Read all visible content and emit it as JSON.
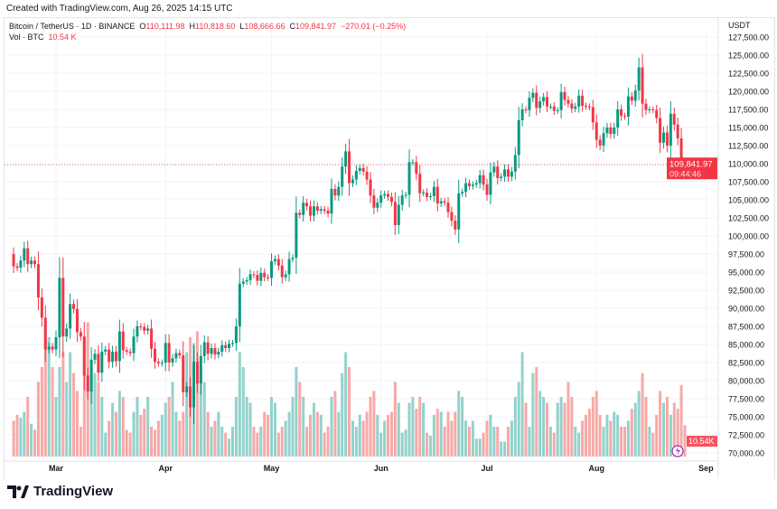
{
  "header": {
    "created": "Created with TradingView.com, Aug 26, 2025 14:15 UTC"
  },
  "legend": {
    "symbol": "Bitcoin / TetherUS · 1D · BINANCE",
    "o_label": "O",
    "o": "110,111.98",
    "h_label": "H",
    "h": "110,818.60",
    "l_label": "L",
    "l": "108,666.66",
    "c_label": "C",
    "c": "109,841.97",
    "change": "−270.01 (−0.25%)",
    "vol_label": "Vol · BTC",
    "vol": "10.54 K"
  },
  "logo": {
    "text": "TradingView"
  },
  "chart_data": {
    "type": "candlestick",
    "currency": "USDT",
    "x_tick_labels": [
      "Mar",
      "Apr",
      "May",
      "Jun",
      "Jul",
      "Aug",
      "Sep"
    ],
    "y_tick_labels": [
      "70,000.00",
      "72,500.00",
      "75,000.00",
      "77,500.00",
      "80,000.00",
      "82,500.00",
      "85,000.00",
      "87,500.00",
      "90,000.00",
      "92,500.00",
      "95,000.00",
      "97,500.00",
      "100,000.00",
      "102,500.00",
      "105,000.00",
      "107,500.00",
      "110,000.00",
      "112,500.00",
      "115,000.00",
      "117,500.00",
      "120,000.00",
      "122,500.00",
      "125,000.00",
      "127,500.00"
    ],
    "ylim": [
      70000,
      127500
    ],
    "start_date": "2025-02-17",
    "end_date": "2025-08-26",
    "close_k": [
      95.8,
      95.6,
      96.6,
      98.3,
      96.1,
      96.6,
      96.1,
      91.5,
      88.7,
      84.3,
      84.7,
      84.3,
      86.0,
      94.2,
      86.1,
      87.2,
      90.6,
      89.9,
      86.7,
      86.1,
      80.7,
      78.5,
      82.9,
      83.7,
      81.1,
      84.0,
      84.3,
      82.6,
      84.0,
      82.7,
      86.8,
      84.2,
      84.0,
      83.8,
      86.1,
      87.5,
      87.4,
      86.9,
      87.2,
      84.4,
      82.6,
      82.4,
      82.5,
      85.2,
      82.5,
      83.1,
      83.8,
      83.5,
      78.4,
      79.2,
      76.3,
      82.6,
      79.6,
      83.4,
      85.3,
      83.7,
      84.5,
      83.6,
      84.0,
      84.9,
      84.5,
      85.1,
      85.2,
      87.5,
      93.4,
      93.7,
      93.9,
      94.7,
      94.6,
      93.8,
      94.9,
      94.3,
      94.2,
      96.5,
      96.8,
      95.9,
      94.3,
      94.7,
      96.8,
      97.0,
      103.2,
      102.9,
      104.6,
      104.1,
      102.8,
      104.1,
      103.5,
      103.7,
      103.5,
      103.1,
      106.5,
      105.6,
      106.8,
      109.6,
      111.7,
      107.3,
      107.8,
      109.0,
      109.4,
      108.9,
      107.8,
      105.6,
      103.9,
      104.6,
      105.6,
      105.8,
      105.4,
      104.7,
      101.5,
      104.3,
      105.6,
      105.7,
      110.2,
      110.2,
      108.6,
      105.9,
      106.0,
      105.4,
      105.5,
      106.8,
      104.5,
      104.8,
      104.6,
      103.3,
      102.1,
      100.9,
      105.9,
      106.1,
      107.3,
      106.9,
      107.1,
      107.3,
      108.4,
      107.1,
      105.7,
      108.8,
      109.6,
      108.0,
      108.2,
      109.2,
      108.2,
      108.9,
      111.2,
      116.0,
      117.5,
      117.4,
      119.1,
      119.8,
      117.7,
      118.6,
      119.2,
      117.9,
      117.9,
      117.3,
      117.4,
      119.9,
      118.8,
      118.3,
      117.6,
      117.9,
      119.4,
      118.0,
      117.9,
      117.8,
      115.7,
      113.3,
      112.5,
      114.2,
      115.0,
      114.1,
      115.0,
      117.5,
      116.6,
      116.5,
      119.3,
      118.7,
      120.1,
      123.3,
      118.3,
      117.4,
      117.5,
      117.4,
      116.3,
      112.9,
      114.3,
      112.5,
      116.9,
      115.4,
      113.5,
      110.1,
      109.84197
    ],
    "first_open_k": 97.5,
    "volume_k": [
      12,
      14,
      13,
      15,
      20,
      11,
      9,
      25,
      30,
      45,
      40,
      30,
      20,
      30,
      35,
      25,
      35,
      28,
      22,
      10,
      40,
      45,
      30,
      28,
      25,
      20,
      8,
      12,
      18,
      15,
      22,
      20,
      9,
      8,
      15,
      20,
      14,
      16,
      20,
      10,
      9,
      12,
      14,
      18,
      20,
      25,
      15,
      12,
      15,
      35,
      40,
      38,
      42,
      30,
      25,
      15,
      10,
      12,
      15,
      10,
      8,
      6,
      10,
      20,
      35,
      30,
      20,
      18,
      10,
      8,
      10,
      15,
      14,
      20,
      18,
      8,
      10,
      12,
      15,
      20,
      30,
      25,
      20,
      10,
      14,
      18,
      15,
      14,
      8,
      10,
      20,
      22,
      15,
      28,
      35,
      30,
      12,
      10,
      14,
      12,
      15,
      20,
      22,
      14,
      8,
      12,
      14,
      15,
      25,
      18,
      8,
      9,
      18,
      20,
      16,
      20,
      18,
      8,
      7,
      14,
      16,
      15,
      10,
      15,
      12,
      15,
      22,
      20,
      12,
      10,
      12,
      6,
      6,
      8,
      12,
      14,
      10,
      10,
      5,
      5,
      10,
      12,
      20,
      25,
      35,
      18,
      10,
      28,
      30,
      22,
      20,
      18,
      10,
      8,
      18,
      20,
      18,
      25,
      20,
      10,
      8,
      12,
      14,
      16,
      20,
      22,
      14,
      10,
      14,
      12,
      15,
      14,
      10,
      10,
      12,
      16,
      18,
      22,
      28,
      20,
      10,
      8,
      14,
      22,
      18,
      20,
      14,
      18,
      16,
      24,
      10.54
    ],
    "last_price_label": "109,841.97",
    "countdown": "09:44:46",
    "last_volume_label": "10.54K",
    "colors": {
      "up": "#089981",
      "down": "#f23645",
      "up_vol": "#92d2cc",
      "down_vol": "#f7a9a7"
    },
    "grid": true
  }
}
